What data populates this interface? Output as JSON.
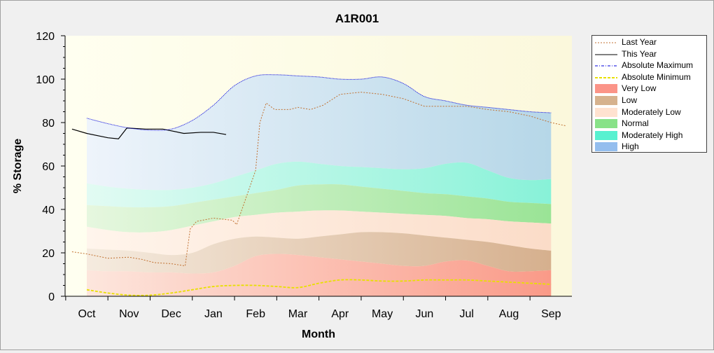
{
  "chart_data": {
    "type": "area",
    "title": "A1R001",
    "xlabel": "Month",
    "ylabel": "% Storage",
    "ylim": [
      0,
      120
    ],
    "yticks": [
      0,
      20,
      40,
      60,
      80,
      100,
      120
    ],
    "categories": [
      "Oct",
      "Nov",
      "Dec",
      "Jan",
      "Feb",
      "Mar",
      "Apr",
      "May",
      "Jun",
      "Jul",
      "Aug",
      "Sep"
    ],
    "legend_position": "right",
    "band_x": [
      0,
      0.5,
      1,
      1.5,
      2,
      2.5,
      3,
      3.5,
      4,
      4.5,
      5,
      5.5,
      6,
      6.5,
      7,
      7.5,
      8,
      8.5,
      9,
      9.5,
      10,
      10.5,
      11
    ],
    "bands": {
      "very_low_top": [
        12,
        11.5,
        11.5,
        11,
        11,
        10.5,
        11,
        14,
        18.5,
        19.5,
        19,
        18,
        17,
        16,
        15,
        14,
        14,
        16,
        16.5,
        14,
        11.5,
        11.5,
        12
      ],
      "low_top": [
        22,
        21.5,
        21,
        20,
        19,
        20,
        24,
        26.5,
        27.5,
        27,
        26.5,
        27.5,
        28.5,
        29.5,
        29.5,
        29,
        28,
        27,
        26,
        25,
        23.5,
        22,
        21
      ],
      "moderately_low_top": [
        32,
        30.5,
        29.5,
        29.5,
        30.5,
        32.5,
        34.5,
        36.5,
        37.5,
        38.5,
        39,
        39.5,
        39.5,
        39,
        38.5,
        38,
        37.5,
        37,
        36,
        35.5,
        34.5,
        34,
        33.5
      ],
      "normal_top": [
        42,
        41.5,
        41,
        41,
        41.5,
        43,
        44.5,
        46,
        47.5,
        49,
        51,
        51.5,
        51.5,
        50.5,
        49.5,
        48.5,
        47.5,
        47,
        46,
        45,
        43.5,
        43,
        42.5
      ],
      "moderately_high_top": [
        52,
        50.5,
        49.5,
        49,
        49,
        50,
        52,
        55,
        58,
        61,
        62,
        61,
        60,
        59.5,
        59,
        58.5,
        59,
        61,
        61.5,
        58,
        54.5,
        53.5,
        54
      ],
      "high_top": [
        82,
        79.5,
        77.5,
        76.5,
        77,
        81,
        88,
        97,
        101.5,
        102,
        101.5,
        101,
        100,
        100,
        101,
        98,
        92,
        90,
        88,
        87,
        86,
        85,
        84.5
      ]
    },
    "series": [
      {
        "name": "Last Year",
        "color": "#c07030",
        "x": [
          -0.35,
          0,
          0.5,
          1,
          1.3,
          1.6,
          2,
          2.33,
          2.45,
          2.6,
          3,
          3.45,
          3.55,
          4.0,
          4.1,
          4.25,
          4.45,
          4.8,
          5,
          5.3,
          5.6,
          6,
          6.5,
          7,
          7.5,
          8,
          8.5,
          9,
          9.5,
          10,
          10.5,
          11,
          11.35
        ],
        "y": [
          20.5,
          19.5,
          17.5,
          18,
          17,
          15.5,
          15,
          14,
          31,
          34.5,
          36,
          35,
          33,
          58,
          80,
          89,
          86,
          86,
          87,
          86,
          88,
          93,
          94,
          93,
          91,
          87.5,
          87.5,
          87.5,
          86,
          85,
          83,
          80,
          78.5
        ]
      },
      {
        "name": "This Year",
        "color": "#000000",
        "x": [
          -0.35,
          0,
          0.5,
          0.75,
          0.95,
          1.4,
          1.8,
          2.3,
          2.7,
          3.0,
          3.3
        ],
        "y": [
          77,
          75,
          73,
          72.5,
          77.5,
          77,
          77,
          75,
          75.5,
          75.5,
          74.5
        ]
      },
      {
        "name": "Absolute Maximum",
        "color": "#0000dd",
        "x": [
          0,
          0.5,
          1,
          1.5,
          2,
          2.5,
          3,
          3.5,
          4,
          4.5,
          5,
          5.5,
          6,
          6.5,
          7,
          7.5,
          8,
          8.5,
          9,
          9.5,
          10,
          10.5,
          11
        ],
        "y": [
          82,
          79.5,
          77.5,
          76.5,
          77,
          81,
          88,
          97,
          101.5,
          102,
          101.5,
          101,
          100,
          100,
          101,
          98,
          92,
          90,
          88,
          87,
          86,
          85,
          84.5
        ]
      },
      {
        "name": "Absolute Minimum",
        "color": "#e8e000",
        "x": [
          0,
          0.5,
          1,
          1.5,
          2,
          2.5,
          3,
          3.5,
          4,
          4.5,
          5,
          5.5,
          6,
          6.5,
          7,
          7.5,
          8,
          8.5,
          9,
          9.5,
          10,
          10.5,
          11
        ],
        "y": [
          3,
          1.5,
          0.5,
          0.5,
          1.5,
          3,
          4.5,
          5,
          5,
          4.5,
          4,
          6,
          7.5,
          7.5,
          7,
          7,
          7.5,
          7.5,
          7.5,
          7,
          6.5,
          6,
          5.5
        ]
      }
    ],
    "legend": [
      {
        "label": "Last Year",
        "kind": "line",
        "color": "#c07030",
        "dash": "2,2"
      },
      {
        "label": "This Year",
        "kind": "line",
        "color": "#000000",
        "dash": ""
      },
      {
        "label": "Absolute Maximum",
        "kind": "line",
        "color": "#0000dd",
        "dash": "4,2,1,2"
      },
      {
        "label": "Absolute Minimum",
        "kind": "line",
        "color": "#e8e000",
        "dash": "4,2"
      },
      {
        "label": "Very Low",
        "kind": "fill",
        "color": "#fa7060"
      },
      {
        "label": "Low",
        "kind": "fill",
        "color": "#c89868"
      },
      {
        "label": "Moderately Low",
        "kind": "fill",
        "color": "#ffd8c0"
      },
      {
        "label": "Normal",
        "kind": "fill",
        "color": "#60d860"
      },
      {
        "label": "Moderately High",
        "kind": "fill",
        "color": "#20ecc0"
      },
      {
        "label": "High",
        "kind": "fill",
        "color": "#70a8e8"
      }
    ],
    "band_colors": {
      "very_low": "#fa7060",
      "low": "#c89868",
      "moderately_low": "#ffd8c0",
      "normal": "#60d860",
      "moderately_high": "#20ecc0",
      "high": "#70a8e8"
    }
  }
}
